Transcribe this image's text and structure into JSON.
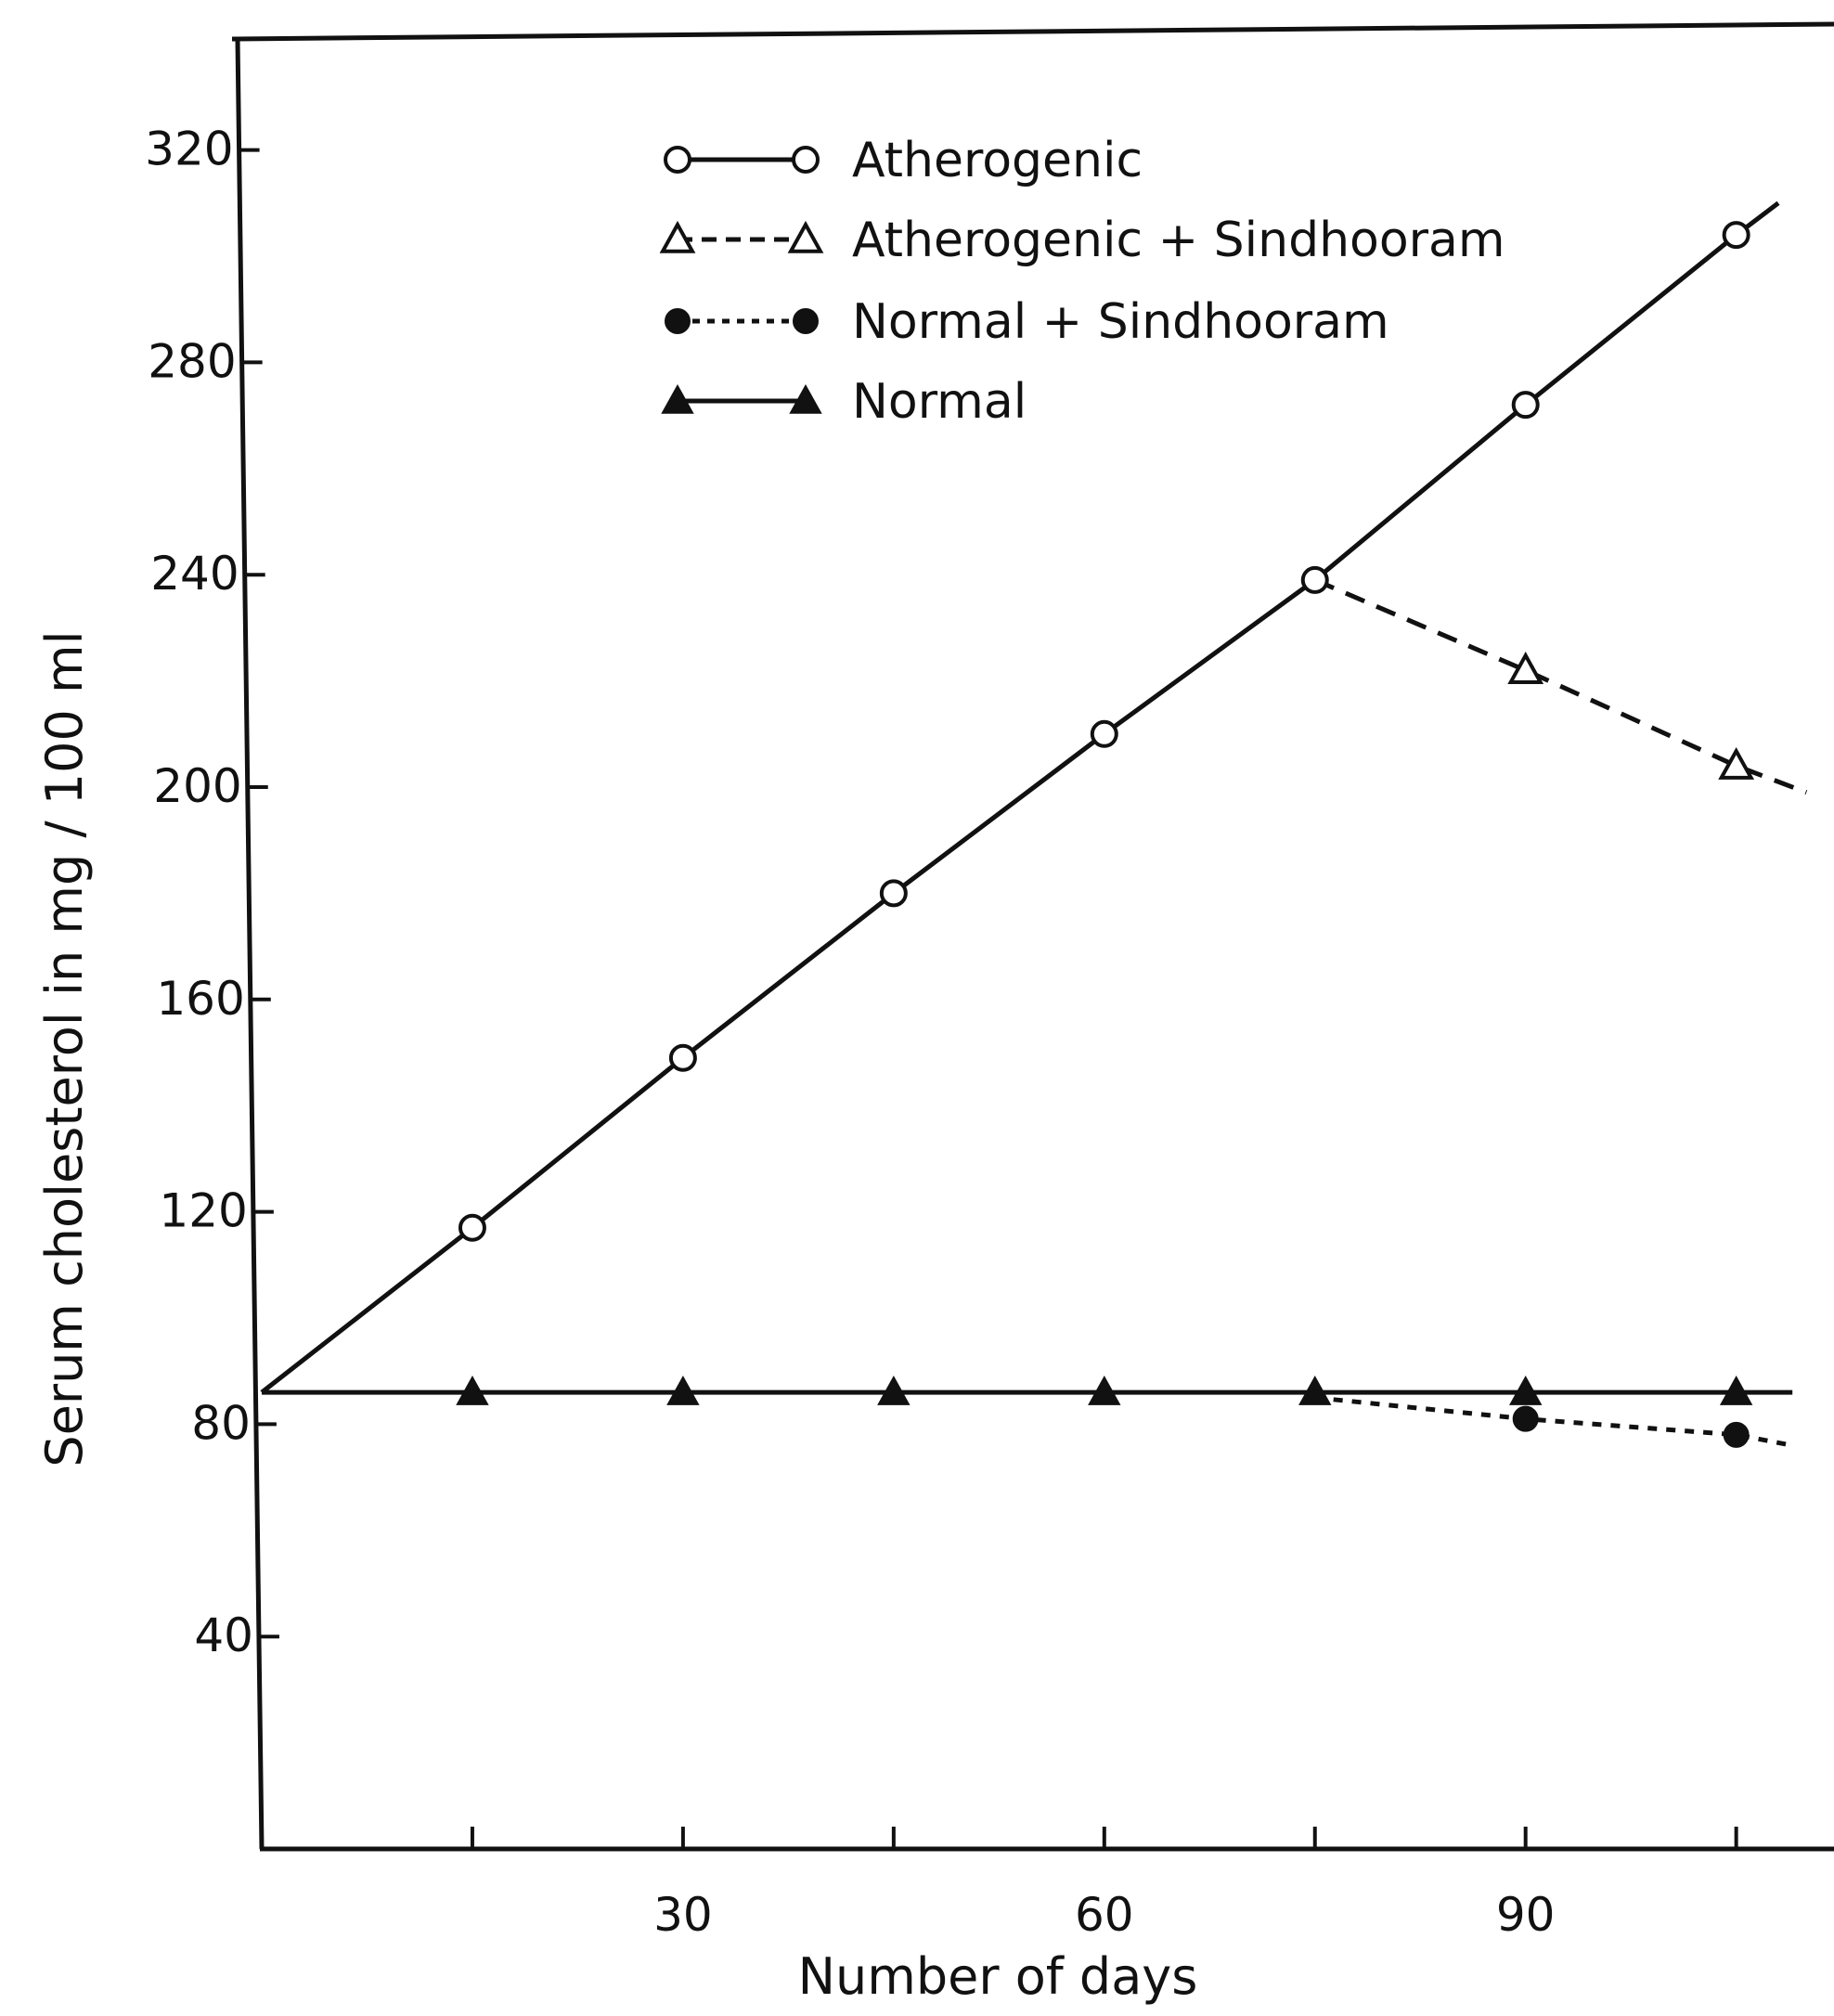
{
  "chart_data": {
    "type": "line",
    "xlabel": "Number of days",
    "ylabel": "Serum cholesterol in mg / 100 ml",
    "xlim": [
      0,
      112
    ],
    "ylim": [
      0,
      330
    ],
    "xticks": [
      {
        "value": 15,
        "label": ""
      },
      {
        "value": 30,
        "label": "30"
      },
      {
        "value": 45,
        "label": ""
      },
      {
        "value": 60,
        "label": "60"
      },
      {
        "value": 75,
        "label": ""
      },
      {
        "value": 90,
        "label": "90"
      },
      {
        "value": 105,
        "label": ""
      }
    ],
    "yticks": [
      {
        "value": 40,
        "label": "40"
      },
      {
        "value": 80,
        "label": "80"
      },
      {
        "value": 120,
        "label": "120"
      },
      {
        "value": 160,
        "label": "160"
      },
      {
        "value": 200,
        "label": "200"
      },
      {
        "value": 240,
        "label": "240"
      },
      {
        "value": 280,
        "label": "280"
      },
      {
        "value": 320,
        "label": "320"
      }
    ],
    "grid": false,
    "legend": "top-center",
    "series": [
      {
        "name": "Atherogenic",
        "marker": "open-circle",
        "dash": "solid",
        "color": "#111111",
        "x": [
          0,
          15,
          30,
          45,
          60,
          75,
          90,
          105
        ],
        "y": [
          86,
          117,
          149,
          180,
          210,
          239,
          272,
          304
        ],
        "line_end": [
          108,
          310
        ]
      },
      {
        "name": "Atherogenic + Sindhooram",
        "marker": "open-triangle",
        "dash": "dashed",
        "color": "#111111",
        "x": [
          75,
          90,
          105
        ],
        "y": [
          239,
          222,
          204
        ],
        "line_end": [
          110,
          199
        ]
      },
      {
        "name": "Normal + Sindhooram",
        "marker": "filled-circle",
        "dash": "dotted",
        "color": "#111111",
        "x": [
          75,
          90,
          105
        ],
        "y": [
          85,
          81,
          78
        ],
        "line_end": [
          109,
          76
        ]
      },
      {
        "name": "Normal",
        "marker": "filled-triangle",
        "dash": "solid",
        "color": "#111111",
        "x": [
          0,
          15,
          30,
          45,
          60,
          75,
          90,
          105
        ],
        "y": [
          86,
          86,
          86,
          86,
          86,
          86,
          86,
          86
        ],
        "line_end": [
          109,
          86
        ]
      }
    ]
  }
}
